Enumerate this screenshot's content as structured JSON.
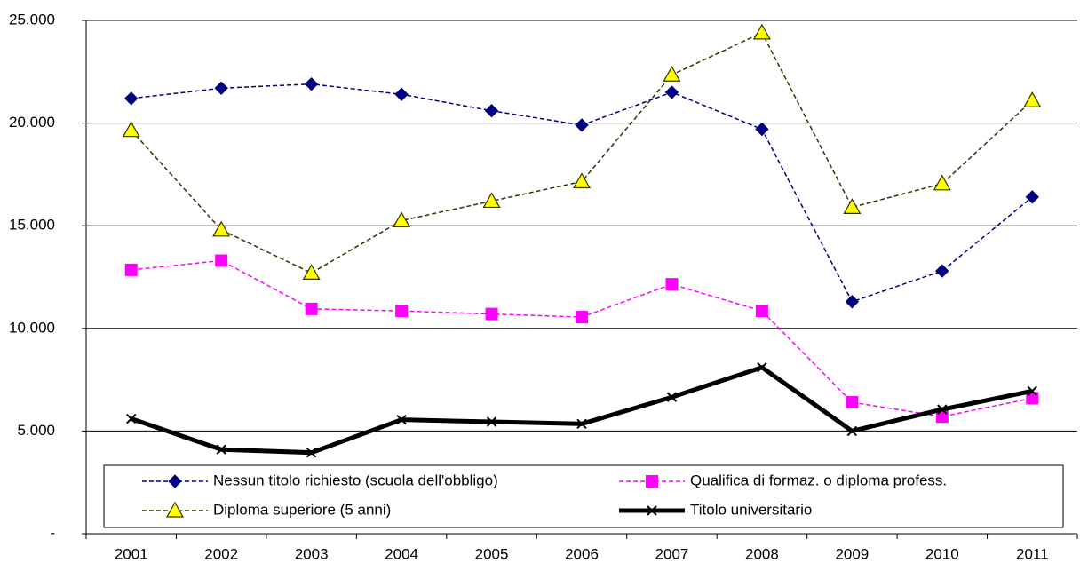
{
  "chart_data": {
    "type": "line",
    "categories": [
      "2001",
      "2002",
      "2003",
      "2004",
      "2005",
      "2006",
      "2007",
      "2008",
      "2009",
      "2010",
      "2011"
    ],
    "series": [
      {
        "name": "Nessun titolo richiesto (scuola dell'obbligo)",
        "color": "#000080",
        "marker": "diamond",
        "dashed": true,
        "values": [
          21200,
          21700,
          21900,
          21400,
          20600,
          19900,
          21500,
          19700,
          11300,
          12800,
          16400
        ]
      },
      {
        "name": "Qualifica di formaz. o diploma profess.",
        "color": "#ff00ff",
        "marker": "square",
        "dashed": true,
        "values": [
          12850,
          13300,
          10950,
          10850,
          10700,
          10550,
          12150,
          10850,
          6400,
          5700,
          6600
        ]
      },
      {
        "name": "Diploma superiore (5 anni)",
        "color": "#333300",
        "marker_fill": "#ffff00",
        "marker": "triangle",
        "dashed": true,
        "values": [
          19650,
          14800,
          12700,
          15250,
          16200,
          17150,
          22350,
          24400,
          15900,
          17050,
          21100
        ]
      },
      {
        "name": "Titolo universitario",
        "color": "#000000",
        "marker": "cross",
        "dashed": false,
        "values": [
          5600,
          4100,
          3950,
          5550,
          5450,
          5350,
          6650,
          8100,
          5000,
          6050,
          6950
        ]
      }
    ],
    "ylim": [
      0,
      25000
    ],
    "yticks": [
      {
        "value": 0,
        "label": "-"
      },
      {
        "value": 5000,
        "label": "5.000"
      },
      {
        "value": 10000,
        "label": "10.000"
      },
      {
        "value": 15000,
        "label": "15.000"
      },
      {
        "value": 20000,
        "label": "20.000"
      },
      {
        "value": 25000,
        "label": "25.000"
      }
    ],
    "grid": true
  }
}
